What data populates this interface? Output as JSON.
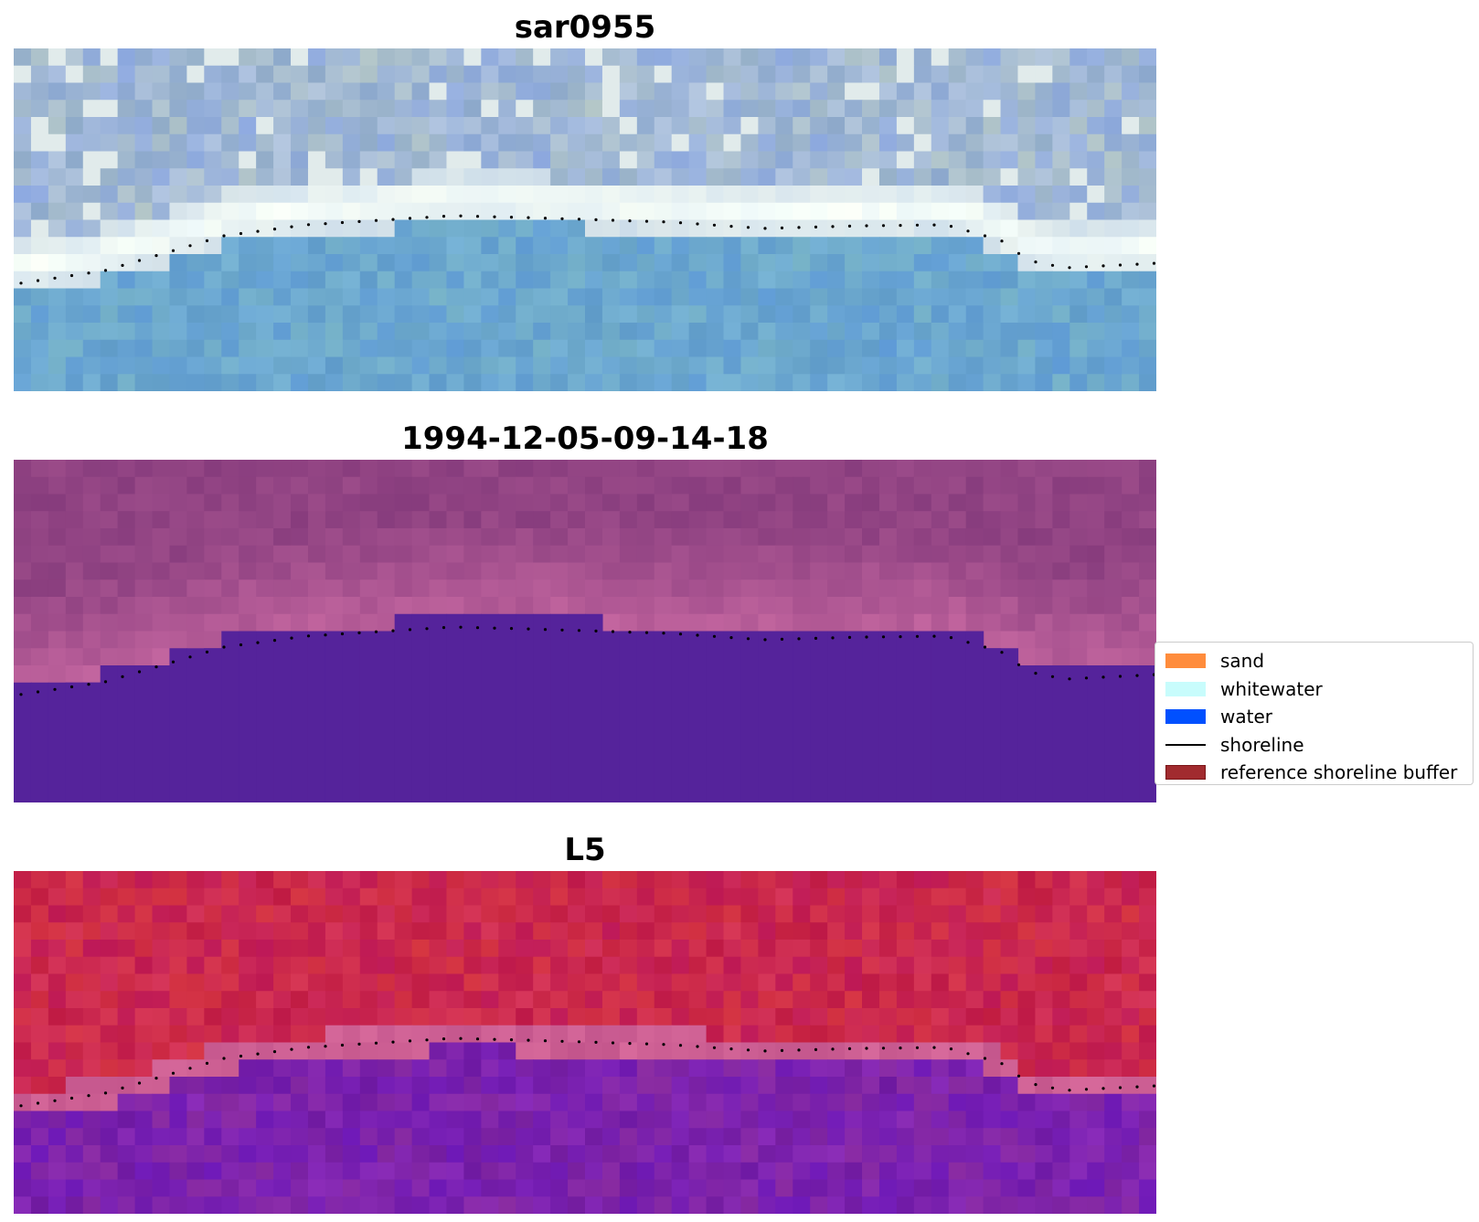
{
  "panels": [
    {
      "title": "sar0955",
      "style": "rgb"
    },
    {
      "title": "1994-12-05-09-14-18",
      "style": "classified"
    },
    {
      "title": "L5",
      "style": "index"
    }
  ],
  "legend": {
    "items": [
      {
        "label": "sand",
        "kind": "patch",
        "color": "#ff8c3c"
      },
      {
        "label": "whitewater",
        "kind": "patch",
        "color": "#c8fcfc"
      },
      {
        "label": "water",
        "kind": "patch",
        "color": "#0050ff"
      },
      {
        "label": "shoreline",
        "kind": "line",
        "color": "#000000"
      },
      {
        "label": "reference shoreline buffer",
        "kind": "patch",
        "color": "#a12b2f",
        "edge": "#7a1518"
      }
    ]
  },
  "colors": {
    "classified_water": "#55239b",
    "shoreline_dots": "#000000"
  }
}
